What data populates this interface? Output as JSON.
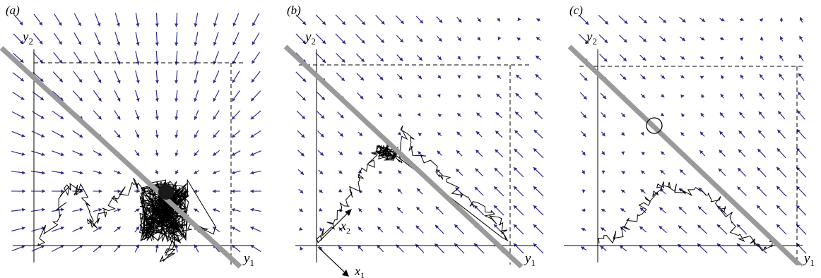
{
  "panels": [
    {
      "label": "(a)",
      "axes": {
        "x_label": "y",
        "x_sub": "1",
        "y_label": "y",
        "y_sub": "2"
      },
      "fixed_point": "filled",
      "extra_axes": null
    },
    {
      "label": "(b)",
      "axes": {
        "x_label": "y",
        "x_sub": "1",
        "y_label": "y",
        "y_sub": "2"
      },
      "fixed_point": "none",
      "extra_axes": {
        "a_label": "x",
        "a_sub": "1",
        "b_label": "x",
        "b_sub": "2"
      }
    },
    {
      "label": "(c)",
      "axes": {
        "x_label": "y",
        "x_sub": "1",
        "y_label": "y",
        "y_sub": "2"
      },
      "fixed_point": "open",
      "extra_axes": null
    }
  ],
  "colors": {
    "arrow": "#2b2b8f",
    "manifold": "#9a9a9a",
    "trajectory": "#000000",
    "axes": "#000000"
  }
}
